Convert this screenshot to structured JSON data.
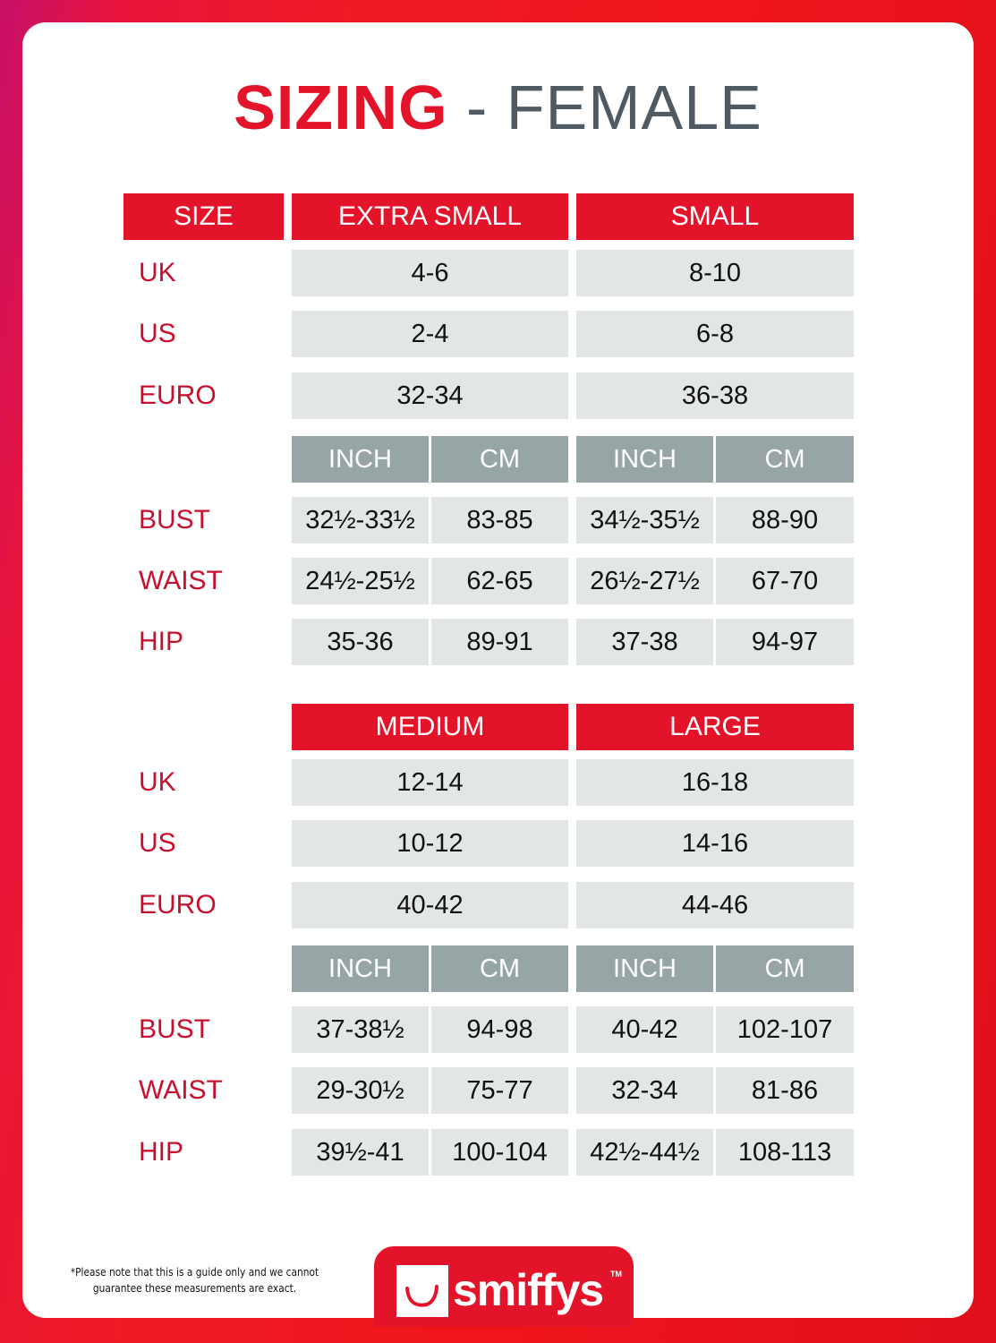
{
  "title": {
    "primary": "SIZING",
    "secondary": "- FEMALE"
  },
  "size_label": "SIZE",
  "sections": [
    {
      "sizes": [
        "EXTRA SMALL",
        "SMALL"
      ],
      "conversions": [
        {
          "label": "UK",
          "values": [
            "4-6",
            "8-10"
          ]
        },
        {
          "label": "US",
          "values": [
            "2-4",
            "6-8"
          ]
        },
        {
          "label": "EURO",
          "values": [
            "32-34",
            "36-38"
          ]
        }
      ],
      "units": [
        "INCH",
        "CM",
        "INCH",
        "CM"
      ],
      "measurements": [
        {
          "label": "BUST",
          "values": [
            "32½-33½",
            "83-85",
            "34½-35½",
            "88-90"
          ]
        },
        {
          "label": "WAIST",
          "values": [
            "24½-25½",
            "62-65",
            "26½-27½",
            "67-70"
          ]
        },
        {
          "label": "HIP",
          "values": [
            "35-36",
            "89-91",
            "37-38",
            "94-97"
          ]
        }
      ]
    },
    {
      "sizes": [
        "MEDIUM",
        "LARGE"
      ],
      "conversions": [
        {
          "label": "UK",
          "values": [
            "12-14",
            "16-18"
          ]
        },
        {
          "label": "US",
          "values": [
            "10-12",
            "14-16"
          ]
        },
        {
          "label": "EURO",
          "values": [
            "40-42",
            "44-46"
          ]
        }
      ],
      "units": [
        "INCH",
        "CM",
        "INCH",
        "CM"
      ],
      "measurements": [
        {
          "label": "BUST",
          "values": [
            "37-38½",
            "94-98",
            "40-42",
            "102-107"
          ]
        },
        {
          "label": "WAIST",
          "values": [
            "29-30½",
            "75-77",
            "32-34",
            "81-86"
          ]
        },
        {
          "label": "HIP",
          "values": [
            "39½-41",
            "100-104",
            "42½-44½",
            "108-113"
          ]
        }
      ]
    }
  ],
  "footer": {
    "note_line1": "*Please note that this is a guide only and we cannot",
    "note_line2": "guarantee these measurements are exact.",
    "brand": "smiffys",
    "trademark": "TM"
  },
  "colors": {
    "accent": "#e3142a",
    "label": "#c8102e",
    "unit_header": "#97a5a6",
    "cell": "#e2e6e5",
    "title_gray": "#4f5a63"
  }
}
